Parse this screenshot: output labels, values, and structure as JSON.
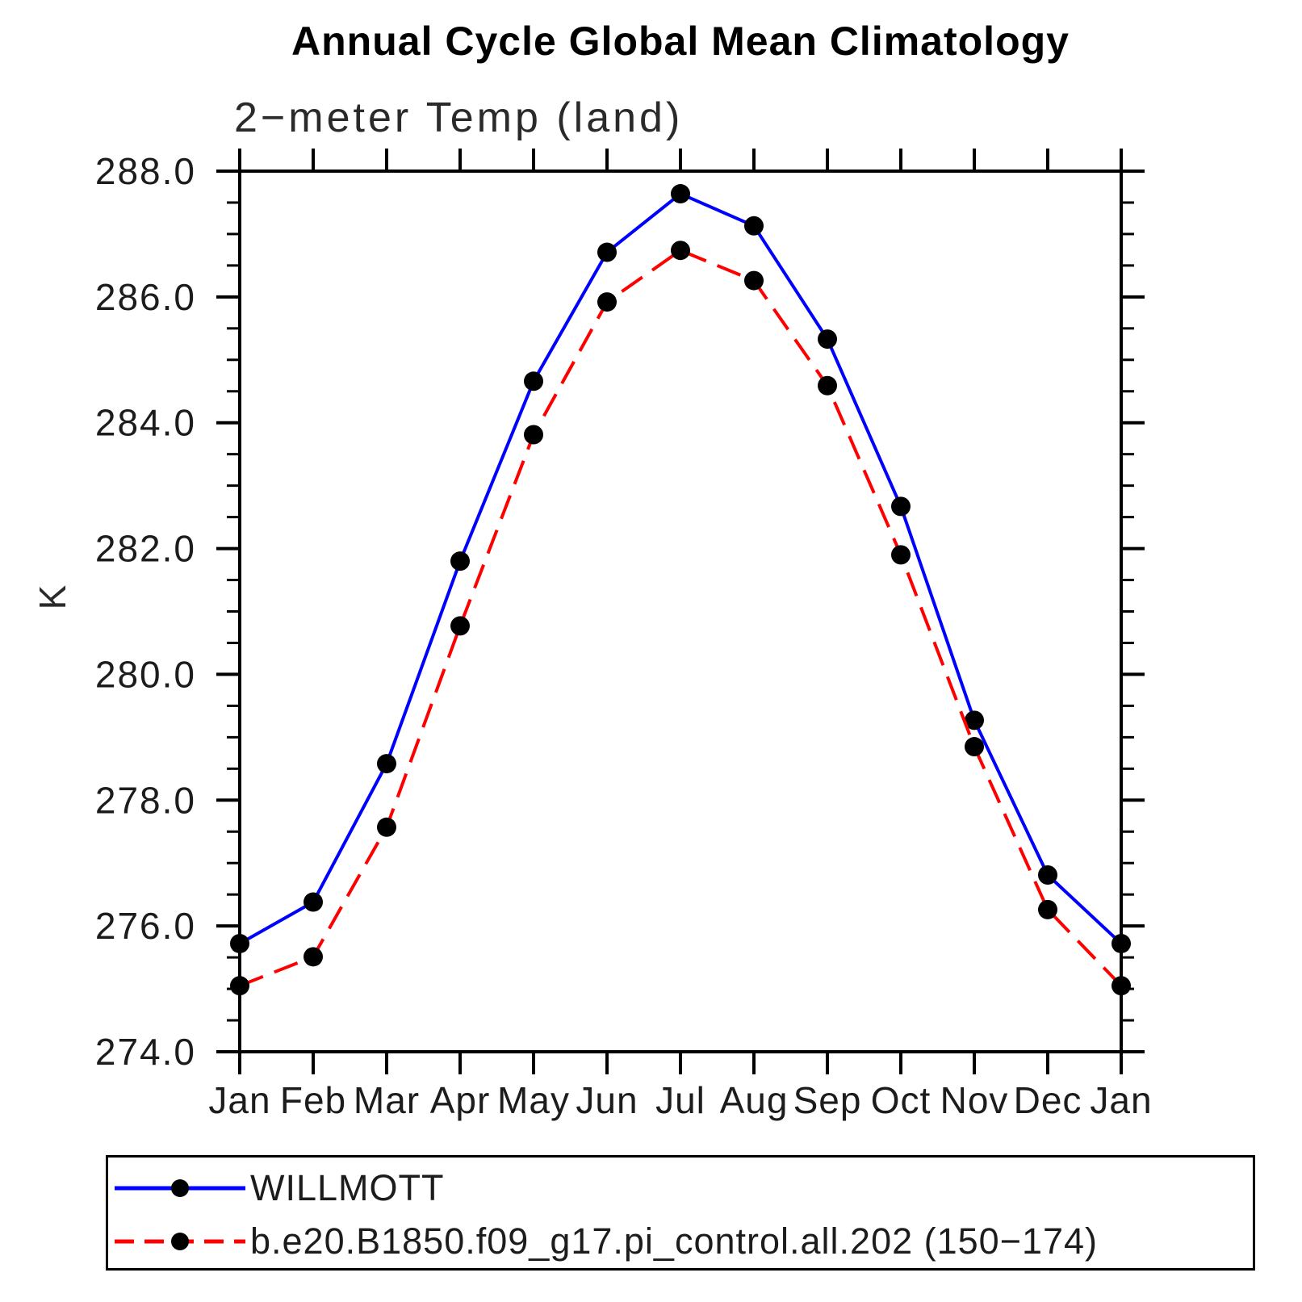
{
  "chart_data": {
    "type": "line",
    "title": "Annual Cycle Global Mean Climatology",
    "subtitle": "2−meter Temp (land)",
    "ylabel": "K",
    "categories": [
      "Jan",
      "Feb",
      "Mar",
      "Apr",
      "May",
      "Jun",
      "Jul",
      "Aug",
      "Sep",
      "Oct",
      "Nov",
      "Dec",
      "Jan"
    ],
    "ylim": [
      274.0,
      288.0
    ],
    "ytick_major_interval": 2.0,
    "ytick_minor_interval": 0.5,
    "ytick_labels": [
      "274.0",
      "276.0",
      "278.0",
      "280.0",
      "282.0",
      "284.0",
      "286.0",
      "288.0"
    ],
    "grid": false,
    "axis_color": "#000000",
    "marker_color": "#000000",
    "legend_position": "bottom-left",
    "series": [
      {
        "name": "WILLMOTT",
        "color": "#0000ff",
        "line_style": "solid",
        "marker": "filled-circle",
        "values": [
          275.72,
          276.38,
          278.58,
          281.8,
          284.66,
          286.71,
          287.64,
          287.13,
          285.33,
          282.67,
          279.27,
          276.81,
          275.72
        ]
      },
      {
        "name": "b.e20.B1850.f09_g17.pi_control.all.202 (150−174)",
        "color": "#ff0000",
        "line_style": "dashed",
        "marker": "filled-circle",
        "values": [
          275.05,
          275.51,
          277.57,
          280.77,
          283.81,
          285.92,
          286.74,
          286.26,
          284.59,
          281.9,
          278.85,
          276.26,
          275.05
        ]
      }
    ]
  }
}
